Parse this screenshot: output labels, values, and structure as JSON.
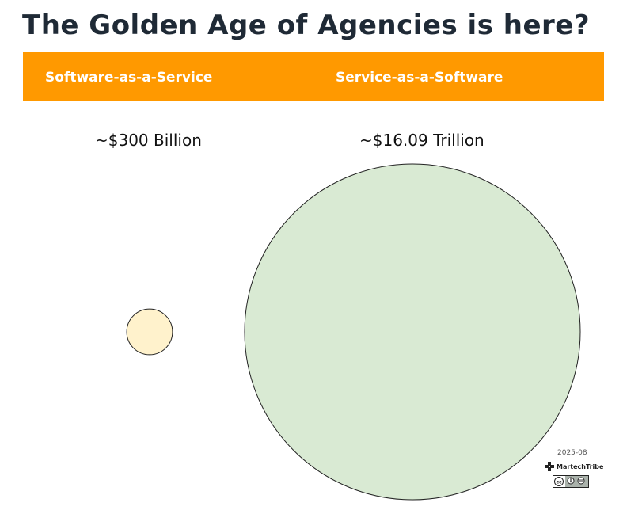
{
  "title": "The Golden Age of Agencies is here?",
  "header": {
    "left_label": "Software-as-a-Service",
    "right_label": "Service-as-a-Software",
    "color": "#ff9900"
  },
  "chart_data": {
    "type": "bubble",
    "categories": [
      "Software-as-a-Service",
      "Service-as-a-Software"
    ],
    "values_labels": [
      "~$300 Billion",
      "~$16.09 Trillion"
    ],
    "values_usd_billion": [
      300,
      16090
    ],
    "colors": [
      "#fff2cc",
      "#d9ead3"
    ]
  },
  "footer": {
    "date": "2025-08",
    "logo_icon": "martechtribe-logo-icon",
    "license_icon": "cc-by-nd-icon"
  }
}
